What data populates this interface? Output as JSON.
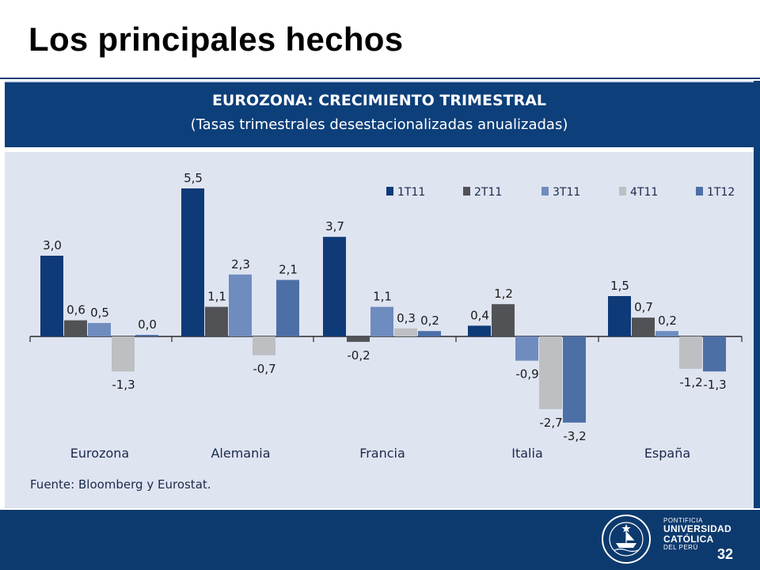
{
  "slide": {
    "title": "Los principales hechos",
    "page_number": "32"
  },
  "branding": {
    "line1": "PONTIFICIA",
    "line2": "UNIVERSIDAD",
    "line3": "CATÓLICA",
    "line4": "DEL PERÚ"
  },
  "chart_data": {
    "type": "bar",
    "title": "EUROZONA: CRECIMIENTO TRIMESTRAL",
    "subtitle": "(Tasas trimestrales desestacionalizadas anualizadas)",
    "source": "Fuente: Bloomberg y Eurostat.",
    "categories": [
      "Eurozona",
      "Alemania",
      "Francia",
      "Italia",
      "España"
    ],
    "series": [
      {
        "name": "1T11",
        "color": "#0e3a78",
        "values": [
          3.0,
          5.5,
          3.7,
          0.4,
          1.5
        ],
        "labels": [
          "3,0",
          "5,5",
          "3,7",
          "0,4",
          "1,5"
        ]
      },
      {
        "name": "2T11",
        "color": "#505256",
        "values": [
          0.6,
          1.1,
          -0.2,
          1.2,
          0.7
        ],
        "labels": [
          "0,6",
          "1,1",
          "-0,2",
          "1,2",
          "0,7"
        ]
      },
      {
        "name": "3T11",
        "color": "#6f8cbf",
        "values": [
          0.5,
          2.3,
          1.1,
          -0.9,
          0.2
        ],
        "labels": [
          "0,5",
          "2,3",
          "1,1",
          "-0,9",
          "0,2"
        ]
      },
      {
        "name": "4T11",
        "color": "#bdbfc2",
        "values": [
          -1.3,
          -0.7,
          0.3,
          -2.7,
          -1.2
        ],
        "labels": [
          "-1,3",
          "-0,7",
          "0,3",
          "-2,7",
          "-1,2"
        ]
      },
      {
        "name": "1T12",
        "color": "#4c6fa6",
        "values": [
          0.0,
          2.1,
          0.2,
          -3.2,
          -1.3
        ],
        "labels": [
          "0,0",
          "2,1",
          "0,2",
          "-3,2",
          "-1,3"
        ]
      }
    ],
    "ylim": [
      -3.2,
      5.5
    ],
    "grid": false,
    "legend_position": "top-right"
  }
}
